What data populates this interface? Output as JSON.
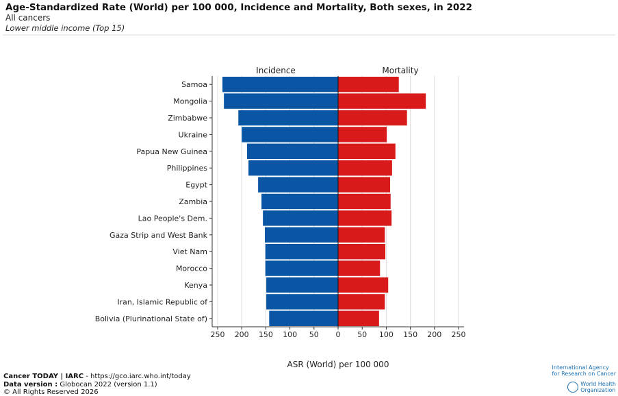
{
  "header": {
    "title": "Age-Standardized Rate (World) per 100 000, Incidence and Mortality, Both sexes, in 2022",
    "subtitle": "All cancers",
    "subtitle2": "Lower middle income (Top 15)"
  },
  "chart_data": {
    "type": "bar",
    "orientation": "horizontal-butterfly",
    "title": "Age-Standardized Rate (World) per 100 000, Incidence and Mortality, Both sexes, in 2022",
    "xlabel": "ASR (World) per 100 000",
    "ylabel": "",
    "xlim": [
      -250,
      250
    ],
    "xticks": [
      "250",
      "200",
      "150",
      "100",
      "50",
      "0",
      "50",
      "100",
      "150",
      "200",
      "250"
    ],
    "grid": true,
    "categories": [
      "Samoa",
      "Mongolia",
      "Zimbabwe",
      "Ukraine",
      "Papua New Guinea",
      "Philippines",
      "Egypt",
      "Zambia",
      "Lao People's Dem.",
      "Gaza Strip and West Bank",
      "Viet Nam",
      "Morocco",
      "Kenya",
      "Iran, Islamic Republic of",
      "Bolivia (Plurinational State of)"
    ],
    "series": [
      {
        "name": "Incidence",
        "color": "#0a56a4",
        "side": "left",
        "values": [
          240,
          237,
          207,
          200,
          189,
          186,
          166,
          159,
          156,
          152,
          151,
          151,
          149,
          149,
          143
        ]
      },
      {
        "name": "Mortality",
        "color": "#d91a1a",
        "side": "right",
        "values": [
          126,
          182,
          143,
          101,
          119,
          112,
          108,
          109,
          111,
          97,
          98,
          87,
          104,
          97,
          85
        ]
      }
    ]
  },
  "footer": {
    "line1_bold": "Cancer TODAY | IARC",
    "line1_rest": " - https://gco.iarc.who.int/today",
    "line2_bold": "Data version :",
    "line2_rest": " Globocan 2022 (version 1.1)",
    "line3": "© All Rights Reserved 2026"
  },
  "logos": {
    "iarc_line1": "International Agency",
    "iarc_line2": "for Research on Cancer",
    "who_line1": "World Health",
    "who_line2": "Organization"
  }
}
